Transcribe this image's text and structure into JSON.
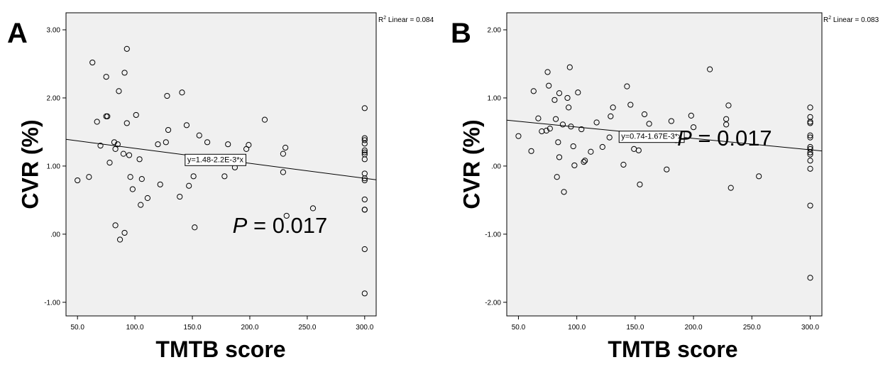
{
  "chart_data": [
    {
      "type": "scatter",
      "panel_label": "A",
      "xlabel": "TMTB score",
      "ylabel": "CVR (%)",
      "xlim": [
        40,
        310
      ],
      "ylim": [
        -1.2,
        3.25
      ],
      "xticks": [
        50,
        100,
        150,
        200,
        250,
        300
      ],
      "xtick_labels": [
        "50.0",
        "100.0",
        "150.0",
        "200.0",
        "250.0",
        "300.0"
      ],
      "yticks": [
        3,
        2,
        1,
        0,
        -1
      ],
      "ytick_labels": [
        "3.00",
        "2.00",
        "1.00",
        ".00",
        "-1.00"
      ],
      "r2_label": "R",
      "r2_sup": "2",
      "r2_text": " Linear = 0.084",
      "fit": {
        "intercept": 1.48,
        "slope": -0.0022,
        "equation": "y=1.48-2.2E-3*x",
        "label_x": 170,
        "label_y": 1.1
      },
      "p_prefix": "P",
      "p_suffix": " = 0.017",
      "p_pos": [
        185,
        0.02
      ],
      "points": [
        [
          50,
          0.79
        ],
        [
          60,
          0.84
        ],
        [
          63,
          2.52
        ],
        [
          67,
          1.65
        ],
        [
          70,
          1.3
        ],
        [
          75,
          2.31
        ],
        [
          75,
          1.73
        ],
        [
          76,
          1.73
        ],
        [
          78,
          1.05
        ],
        [
          82,
          1.35
        ],
        [
          83,
          1.25
        ],
        [
          83,
          0.13
        ],
        [
          85,
          1.32
        ],
        [
          86,
          2.1
        ],
        [
          87,
          -0.08
        ],
        [
          90,
          1.18
        ],
        [
          91,
          2.37
        ],
        [
          91,
          0.02
        ],
        [
          93,
          2.72
        ],
        [
          93,
          1.63
        ],
        [
          95,
          1.16
        ],
        [
          96,
          0.84
        ],
        [
          98,
          0.66
        ],
        [
          101,
          1.75
        ],
        [
          104,
          1.1
        ],
        [
          105,
          0.43
        ],
        [
          106,
          0.81
        ],
        [
          111,
          0.53
        ],
        [
          120,
          1.32
        ],
        [
          122,
          0.73
        ],
        [
          127,
          1.35
        ],
        [
          128,
          2.03
        ],
        [
          129,
          1.53
        ],
        [
          139,
          0.55
        ],
        [
          141,
          2.08
        ],
        [
          145,
          1.6
        ],
        [
          147,
          0.71
        ],
        [
          151,
          0.85
        ],
        [
          152,
          0.1
        ],
        [
          156,
          1.45
        ],
        [
          163,
          1.35
        ],
        [
          178,
          0.85
        ],
        [
          181,
          1.32
        ],
        [
          187,
          0.98
        ],
        [
          197,
          1.25
        ],
        [
          199,
          1.31
        ],
        [
          213,
          1.68
        ],
        [
          229,
          0.91
        ],
        [
          229,
          1.18
        ],
        [
          231,
          1.27
        ],
        [
          232,
          0.27
        ],
        [
          255,
          0.38
        ],
        [
          300,
          1.85
        ],
        [
          300,
          1.41
        ],
        [
          300,
          1.38
        ],
        [
          300,
          1.33
        ],
        [
          300,
          1.23
        ],
        [
          300,
          1.2
        ],
        [
          300,
          1.17
        ],
        [
          300,
          1.1
        ],
        [
          300,
          0.89
        ],
        [
          300,
          0.82
        ],
        [
          300,
          0.79
        ],
        [
          300,
          0.51
        ],
        [
          300,
          0.36
        ],
        [
          300,
          0.36
        ],
        [
          300,
          -0.22
        ],
        [
          300,
          -0.87
        ]
      ]
    },
    {
      "type": "scatter",
      "panel_label": "B",
      "xlabel": "TMTB score",
      "ylabel": "CVR (%)",
      "xlim": [
        40,
        310
      ],
      "ylim": [
        -2.2,
        2.25
      ],
      "xticks": [
        50,
        100,
        150,
        200,
        250,
        300
      ],
      "xtick_labels": [
        "50.0",
        "100.0",
        "150.0",
        "200.0",
        "250.0",
        "300.0"
      ],
      "yticks": [
        2,
        1,
        0,
        -1,
        -2
      ],
      "ytick_labels": [
        "2.00",
        "1.00",
        ".00",
        "-1.00",
        "-2.00"
      ],
      "r2_label": "R",
      "r2_sup": "2",
      "r2_text": " Linear = 0.083",
      "fit": {
        "intercept": 0.74,
        "slope": -0.00167,
        "equation": "y=0.74-1.67E-3*x",
        "label_x": 164,
        "label_y": 0.44
      },
      "p_prefix": "P",
      "p_suffix": " = 0.017",
      "p_pos": [
        186,
        0.3
      ],
      "points": [
        [
          50,
          0.44
        ],
        [
          61,
          0.22
        ],
        [
          63,
          1.1
        ],
        [
          67,
          0.7
        ],
        [
          70,
          0.51
        ],
        [
          74,
          0.52
        ],
        [
          75,
          1.38
        ],
        [
          76,
          1.18
        ],
        [
          77,
          0.55
        ],
        [
          81,
          0.97
        ],
        [
          82,
          0.69
        ],
        [
          83,
          -0.16
        ],
        [
          84,
          0.35
        ],
        [
          85,
          0.13
        ],
        [
          85,
          1.07
        ],
        [
          88,
          0.61
        ],
        [
          89,
          -0.38
        ],
        [
          92,
          1.0
        ],
        [
          93,
          0.86
        ],
        [
          94,
          1.45
        ],
        [
          95,
          0.58
        ],
        [
          97,
          0.29
        ],
        [
          98,
          0.01
        ],
        [
          101,
          1.08
        ],
        [
          104,
          0.54
        ],
        [
          106,
          0.06
        ],
        [
          107,
          0.08
        ],
        [
          112,
          0.21
        ],
        [
          117,
          0.64
        ],
        [
          122,
          0.28
        ],
        [
          128,
          0.42
        ],
        [
          129,
          0.73
        ],
        [
          131,
          0.86
        ],
        [
          140,
          0.02
        ],
        [
          143,
          1.17
        ],
        [
          146,
          0.9
        ],
        [
          149,
          0.25
        ],
        [
          153,
          0.23
        ],
        [
          154,
          -0.27
        ],
        [
          158,
          0.76
        ],
        [
          162,
          0.62
        ],
        [
          177,
          -0.05
        ],
        [
          181,
          0.66
        ],
        [
          185,
          0.38
        ],
        [
          198,
          0.74
        ],
        [
          200,
          0.57
        ],
        [
          214,
          1.42
        ],
        [
          228,
          0.69
        ],
        [
          228,
          0.61
        ],
        [
          230,
          0.89
        ],
        [
          232,
          -0.32
        ],
        [
          256,
          -0.15
        ],
        [
          300,
          0.86
        ],
        [
          300,
          0.72
        ],
        [
          300,
          0.65
        ],
        [
          300,
          0.63
        ],
        [
          300,
          0.45
        ],
        [
          300,
          0.42
        ],
        [
          300,
          0.28
        ],
        [
          300,
          0.25
        ],
        [
          300,
          0.2
        ],
        [
          300,
          0.17
        ],
        [
          300,
          0.08
        ],
        [
          300,
          -0.04
        ],
        [
          300,
          -0.58
        ],
        [
          300,
          -1.64
        ]
      ]
    }
  ]
}
